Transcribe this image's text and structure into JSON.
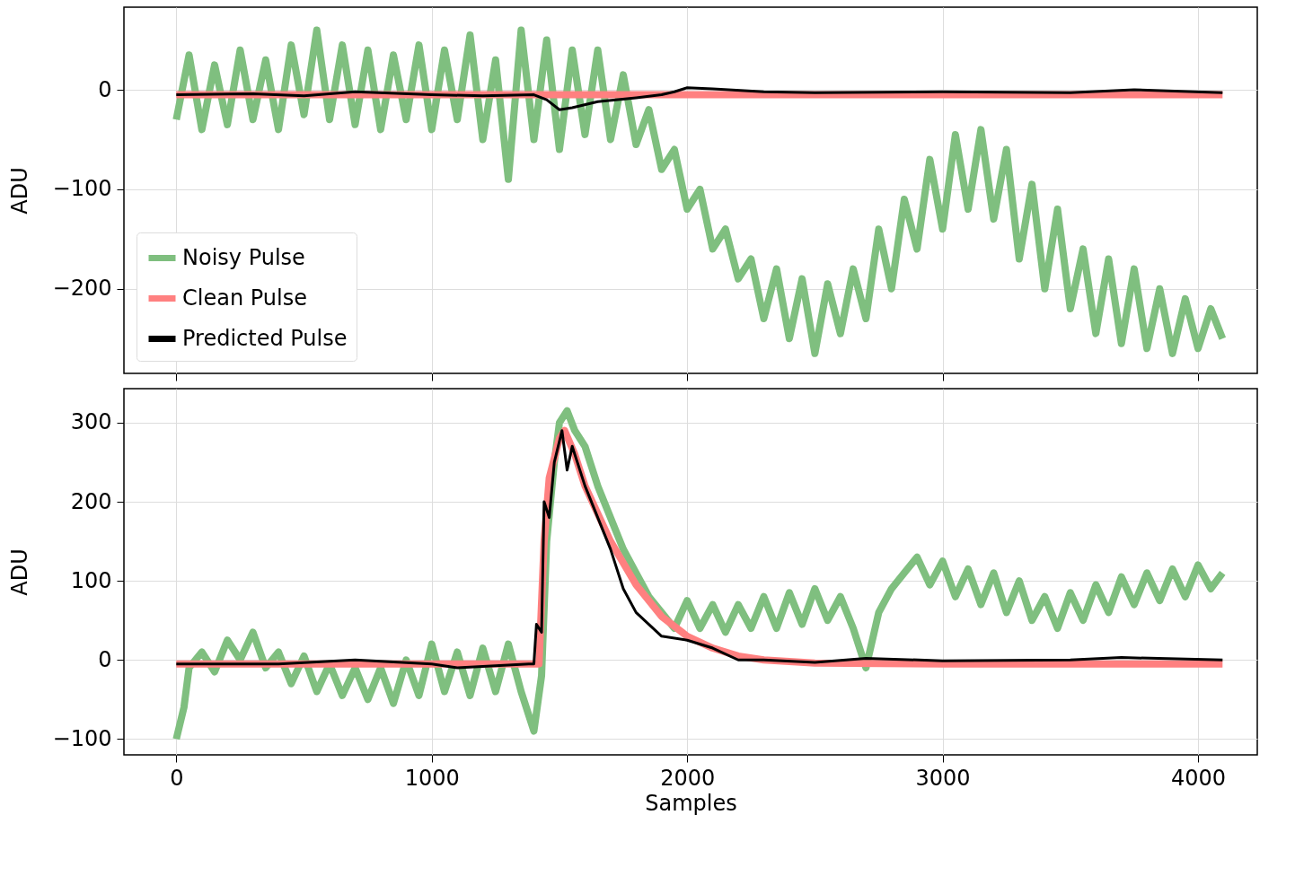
{
  "chart_data": [
    {
      "type": "line",
      "ylabel": "ADU",
      "xlim": [
        -205,
        4232
      ],
      "xticks": [
        0,
        1000,
        2000,
        3000,
        4000
      ],
      "ylim": [
        -285,
        83
      ],
      "yticks": [
        -200,
        -100,
        0
      ],
      "grid": true,
      "legend": "bottom left",
      "tick_labels": "y",
      "series": [
        {
          "name": "Noisy Pulse",
          "color": "#7fbf7f",
          "x": [
            0,
            50,
            100,
            150,
            200,
            250,
            300,
            350,
            400,
            450,
            500,
            550,
            600,
            650,
            700,
            750,
            800,
            850,
            900,
            950,
            1000,
            1050,
            1100,
            1150,
            1200,
            1250,
            1300,
            1350,
            1400,
            1450,
            1500,
            1550,
            1600,
            1650,
            1700,
            1750,
            1800,
            1850,
            1900,
            1950,
            2000,
            2050,
            2100,
            2150,
            2200,
            2250,
            2300,
            2350,
            2400,
            2450,
            2500,
            2550,
            2600,
            2650,
            2700,
            2750,
            2800,
            2850,
            2900,
            2950,
            3000,
            3050,
            3100,
            3150,
            3200,
            3250,
            3300,
            3350,
            3400,
            3450,
            3500,
            3550,
            3600,
            3650,
            3700,
            3750,
            3800,
            3850,
            3900,
            3950,
            4000,
            4050,
            4096
          ],
          "values": [
            -30,
            35,
            -40,
            25,
            -35,
            40,
            -30,
            30,
            -40,
            45,
            -25,
            60,
            -30,
            45,
            -35,
            40,
            -40,
            35,
            -30,
            45,
            -40,
            40,
            -30,
            55,
            -50,
            30,
            -90,
            60,
            -50,
            50,
            -60,
            40,
            -45,
            40,
            -50,
            15,
            -55,
            -20,
            -80,
            -60,
            -120,
            -100,
            -160,
            -140,
            -190,
            -170,
            -230,
            -180,
            -250,
            -190,
            -265,
            -195,
            -245,
            -180,
            -230,
            -140,
            -200,
            -110,
            -160,
            -70,
            -140,
            -45,
            -120,
            -40,
            -130,
            -60,
            -170,
            -95,
            -200,
            -120,
            -220,
            -160,
            -245,
            -170,
            -255,
            -180,
            -260,
            -200,
            -265,
            -210,
            -260,
            -220,
            -250
          ]
        },
        {
          "name": "Clean Pulse",
          "color": "#ff8080",
          "x": [
            0,
            1000,
            2000,
            3000,
            4096
          ],
          "values": [
            -5,
            -5,
            -5,
            -5,
            -5
          ]
        },
        {
          "name": "Predicted Pulse",
          "color": "#000000",
          "x": [
            0,
            300,
            500,
            700,
            1000,
            1200,
            1400,
            1450,
            1500,
            1550,
            1650,
            1800,
            1900,
            1950,
            2000,
            2100,
            2300,
            2500,
            3000,
            3500,
            3750,
            4096
          ],
          "values": [
            -5,
            -4,
            -6,
            -2,
            -5,
            -6,
            -5,
            -10,
            -20,
            -18,
            -12,
            -8,
            -5,
            -2,
            2,
            1,
            -2,
            -3,
            -2,
            -3,
            0,
            -3
          ]
        }
      ]
    },
    {
      "type": "line",
      "xlabel": "Samples",
      "ylabel": "ADU",
      "xlim": [
        -205,
        4232
      ],
      "xticks": [
        0,
        1000,
        2000,
        3000,
        4000
      ],
      "ylim": [
        -120,
        343
      ],
      "yticks": [
        -100,
        0,
        100,
        200,
        300
      ],
      "grid": true,
      "series": [
        {
          "color": "#7fbf7f",
          "x": [
            0,
            30,
            50,
            100,
            150,
            200,
            250,
            300,
            350,
            400,
            450,
            500,
            550,
            600,
            650,
            700,
            750,
            800,
            850,
            900,
            950,
            1000,
            1050,
            1100,
            1150,
            1200,
            1250,
            1300,
            1350,
            1400,
            1430,
            1450,
            1480,
            1500,
            1530,
            1560,
            1600,
            1650,
            1700,
            1750,
            1800,
            1850,
            1900,
            1950,
            2000,
            2050,
            2100,
            2150,
            2200,
            2250,
            2300,
            2350,
            2400,
            2450,
            2500,
            2550,
            2600,
            2650,
            2700,
            2750,
            2800,
            2850,
            2900,
            2950,
            3000,
            3050,
            3100,
            3150,
            3200,
            3250,
            3300,
            3350,
            3400,
            3450,
            3500,
            3550,
            3600,
            3650,
            3700,
            3750,
            3800,
            3850,
            3900,
            3950,
            4000,
            4050,
            4096
          ],
          "values": [
            -100,
            -60,
            -10,
            10,
            -15,
            25,
            0,
            35,
            -10,
            10,
            -30,
            5,
            -40,
            -5,
            -45,
            -10,
            -50,
            -10,
            -55,
            0,
            -45,
            20,
            -40,
            10,
            -45,
            15,
            -40,
            20,
            -40,
            -90,
            -20,
            150,
            250,
            300,
            315,
            290,
            270,
            220,
            180,
            140,
            110,
            80,
            60,
            40,
            75,
            40,
            70,
            35,
            70,
            40,
            80,
            40,
            85,
            45,
            90,
            50,
            80,
            40,
            -10,
            60,
            90,
            110,
            130,
            95,
            125,
            80,
            115,
            70,
            110,
            60,
            100,
            50,
            80,
            40,
            85,
            50,
            95,
            60,
            105,
            70,
            110,
            75,
            115,
            80,
            120,
            90,
            110
          ]
        },
        {
          "color": "#ff8080",
          "x": [
            0,
            1400,
            1420,
            1440,
            1460,
            1500,
            1520,
            1560,
            1600,
            1700,
            1800,
            1900,
            2000,
            2100,
            2200,
            2300,
            2500,
            3000,
            4096
          ],
          "values": [
            -5,
            -5,
            -5,
            150,
            230,
            280,
            290,
            260,
            220,
            150,
            95,
            55,
            30,
            15,
            5,
            0,
            -4,
            -5,
            -5
          ]
        },
        {
          "color": "#000000",
          "x": [
            0,
            400,
            700,
            1000,
            1100,
            1380,
            1400,
            1410,
            1430,
            1440,
            1460,
            1480,
            1510,
            1530,
            1550,
            1600,
            1700,
            1750,
            1800,
            1850,
            1900,
            2000,
            2100,
            2200,
            2300,
            2500,
            2700,
            3000,
            3500,
            3700,
            4096
          ],
          "values": [
            -5,
            -5,
            0,
            -5,
            -10,
            -5,
            -5,
            45,
            35,
            200,
            180,
            250,
            290,
            240,
            270,
            220,
            140,
            90,
            60,
            45,
            30,
            25,
            15,
            0,
            0,
            -3,
            2,
            -1,
            0,
            3,
            0
          ]
        }
      ]
    }
  ]
}
